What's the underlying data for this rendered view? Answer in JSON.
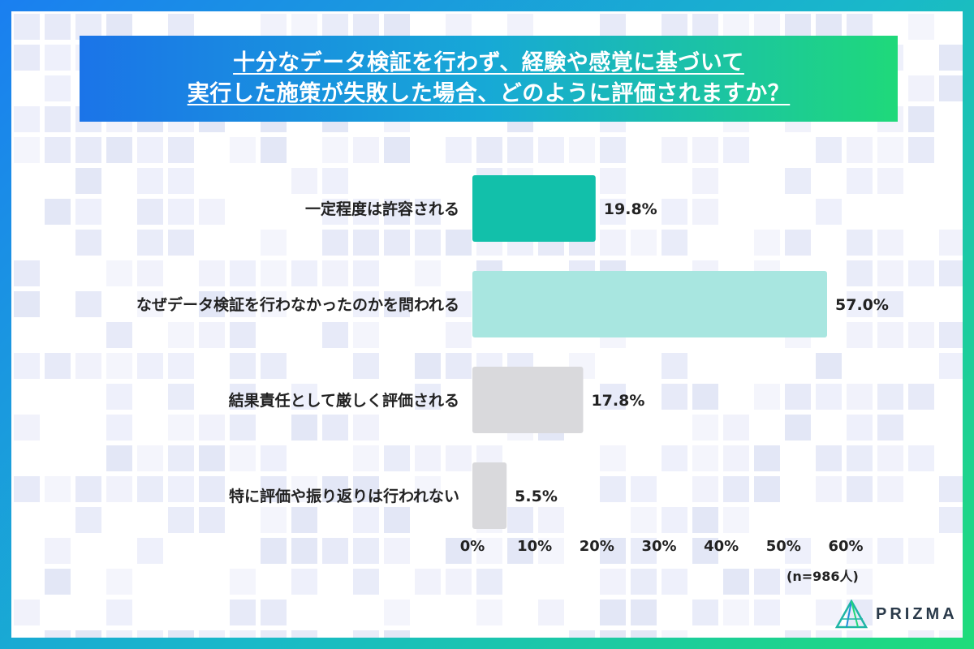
{
  "title": {
    "line1": "十分なデータ検証を行わず、経験や感覚に基づいて",
    "line2": "実行した施策が失敗した場合、どのように評価されますか？"
  },
  "chart_data": {
    "type": "bar",
    "orientation": "horizontal",
    "categories": [
      "一定程度は許容される",
      "なぜデータ検証を行わなかったのかを問われる",
      "結果責任として厳しく評価される",
      "特に評価や振り返りは行われない"
    ],
    "values": [
      19.8,
      57.0,
      17.8,
      5.5
    ],
    "value_labels": [
      "19.8%",
      "57.0%",
      "17.8%",
      "5.5%"
    ],
    "bar_colors": [
      "#12c0aa",
      "#a8e6e0",
      "#d9d9dc",
      "#d9d9dc"
    ],
    "xlim": [
      0,
      60
    ],
    "xticks": [
      "0%",
      "10%",
      "20%",
      "30%",
      "40%",
      "50%",
      "60%"
    ],
    "grid": false
  },
  "sample_note": "(n=986人)",
  "logo": {
    "text": "PRIZMA",
    "icon": "prizma-prism-icon",
    "color": "#2a3a4a"
  }
}
